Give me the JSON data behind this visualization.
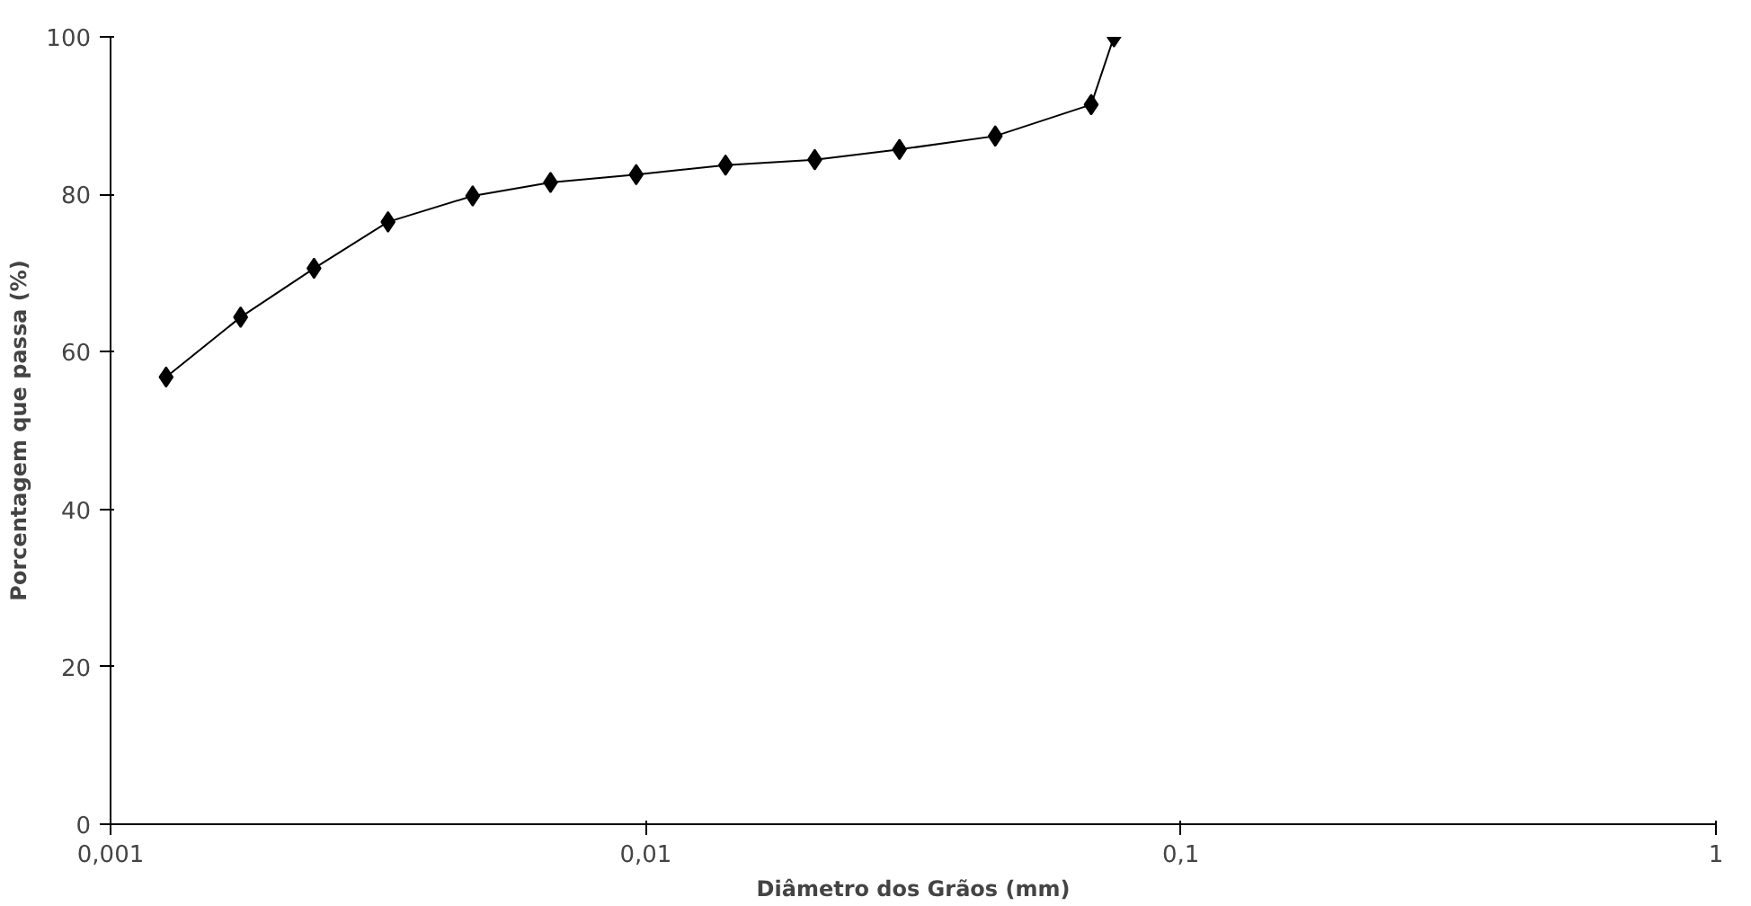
{
  "chart_data": {
    "type": "line",
    "xlabel": "Diâmetro dos Grãos (mm)",
    "ylabel": "Porcentagem que passa (%)",
    "x": [
      0.00127,
      0.00175,
      0.0024,
      0.0033,
      0.00475,
      0.00664,
      0.0096,
      0.0141,
      0.0207,
      0.0298,
      0.045,
      0.068,
      0.075
    ],
    "series": [
      {
        "color": "#000000",
        "values": [
          56.8,
          64.4,
          70.6,
          76.5,
          79.8,
          81.5,
          82.5,
          83.7,
          84.4,
          85.7,
          87.4,
          91.4,
          100
        ]
      }
    ],
    "log": "x",
    "xlim": [
      0.001,
      1
    ],
    "xticks": [
      {
        "value": 0.001,
        "label": "0,001"
      },
      {
        "value": 0.01,
        "label": "0,01"
      },
      {
        "value": 0.1,
        "label": "0,1"
      },
      1
    ],
    "ylim": [
      0,
      100
    ],
    "yticks": [
      0,
      20,
      40,
      60,
      80,
      100
    ],
    "grid": false,
    "marker": "diamond",
    "line_style": "solid"
  }
}
